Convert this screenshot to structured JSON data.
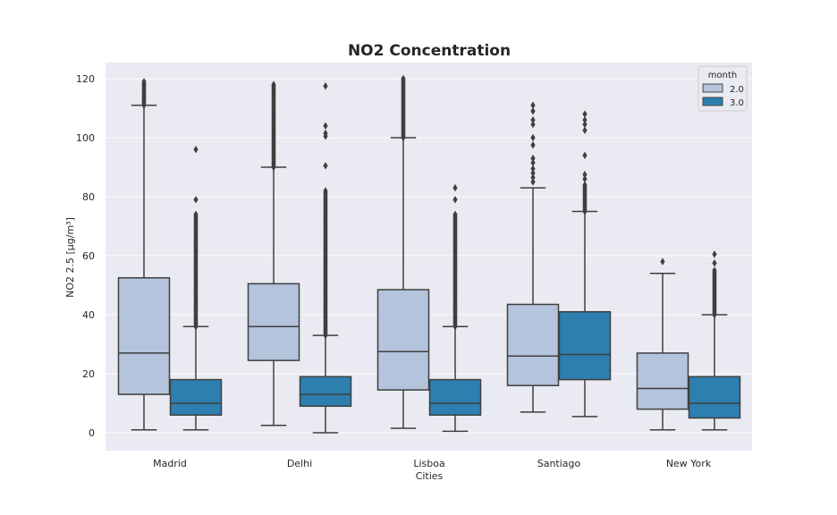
{
  "chart_data": {
    "type": "boxplot",
    "title": "NO2 Concentration",
    "xlabel": "Cities",
    "ylabel": "NO2 2.5 [µg/m³]",
    "ylim": [
      -6,
      125
    ],
    "yticks": [
      0,
      20,
      40,
      60,
      80,
      100,
      120
    ],
    "categories": [
      "Madrid",
      "Delhi",
      "Lisboa",
      "Santiago",
      "New York"
    ],
    "grid": true,
    "legend": {
      "title": "month",
      "placement": "top-right"
    },
    "series": [
      {
        "name": "2.0",
        "color": "#b4c4dc",
        "boxes": [
          {
            "whisker_low": 1,
            "q1": 13,
            "median": 27,
            "q3": 52.5,
            "whisker_high": 111,
            "outliers_range": [
              111,
              119
            ]
          },
          {
            "whisker_low": 2.5,
            "q1": 24.5,
            "median": 36,
            "q3": 50.5,
            "whisker_high": 90,
            "outliers_range": [
              90,
              118
            ]
          },
          {
            "whisker_low": 1.5,
            "q1": 14.5,
            "median": 27.5,
            "q3": 48.5,
            "whisker_high": 100,
            "outliers_range": [
              100,
              120
            ]
          },
          {
            "whisker_low": 7,
            "q1": 16,
            "median": 26,
            "q3": 43.5,
            "whisker_high": 83,
            "outliers": [
              85,
              86.5,
              88,
              89.5,
              91.5,
              93,
              97.5,
              100,
              104.5,
              106,
              109,
              111
            ]
          },
          {
            "whisker_low": 1,
            "q1": 8,
            "median": 15,
            "q3": 27,
            "whisker_high": 54,
            "outliers": [
              58
            ]
          }
        ]
      },
      {
        "name": "3.0",
        "color": "#2d7fb0",
        "boxes": [
          {
            "whisker_low": 1,
            "q1": 6,
            "median": 10,
            "q3": 18,
            "whisker_high": 36,
            "outliers_range": [
              36,
              74
            ],
            "outliers": [
              79,
              96
            ]
          },
          {
            "whisker_low": 0,
            "q1": 9,
            "median": 13,
            "q3": 19,
            "whisker_high": 33,
            "outliers_range": [
              33,
              82
            ],
            "outliers": [
              90.5,
              100.5,
              101.5,
              104,
              117.5
            ]
          },
          {
            "whisker_low": 0.5,
            "q1": 6,
            "median": 10,
            "q3": 18,
            "whisker_high": 36,
            "outliers_range": [
              36,
              74
            ],
            "outliers": [
              79,
              83
            ]
          },
          {
            "whisker_low": 5.5,
            "q1": 18,
            "median": 26.5,
            "q3": 41,
            "whisker_high": 75,
            "outliers_range": [
              75,
              84
            ],
            "outliers": [
              86,
              87.5,
              94,
              102.5,
              104.5,
              106,
              108
            ]
          },
          {
            "whisker_low": 1,
            "q1": 5,
            "median": 10,
            "q3": 19,
            "whisker_high": 40,
            "outliers_range": [
              40,
              55
            ],
            "outliers": [
              57.5,
              60.5
            ]
          }
        ]
      }
    ]
  }
}
